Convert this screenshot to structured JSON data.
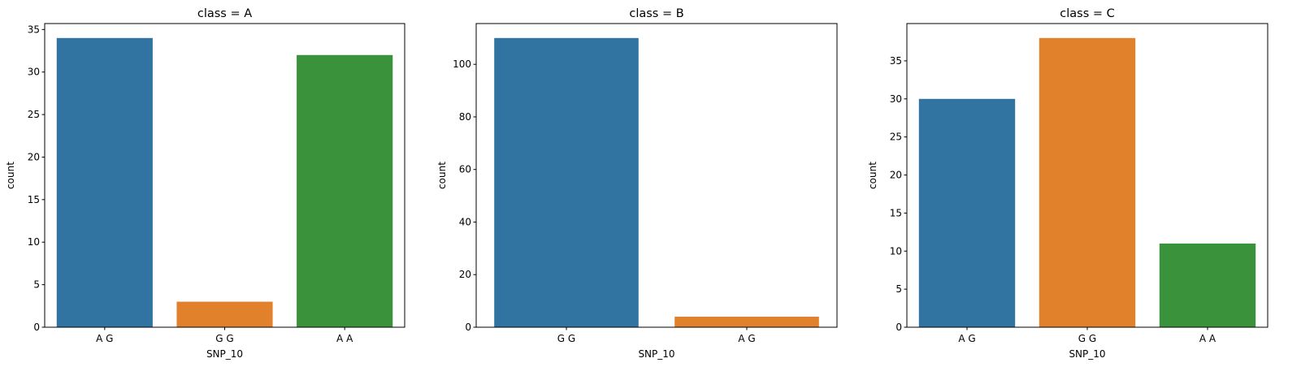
{
  "chart_data": [
    {
      "type": "bar",
      "title": "class = A",
      "xlabel": "SNP_10",
      "ylabel": "count",
      "categories": [
        "A G",
        "G G",
        "A A"
      ],
      "values": [
        34,
        3,
        32
      ],
      "colors": [
        "#3274a1",
        "#e1812c",
        "#3a923a"
      ],
      "ylim": [
        0,
        35.7
      ],
      "yticks": [
        0,
        5,
        10,
        15,
        20,
        25,
        30,
        35
      ],
      "grid": false
    },
    {
      "type": "bar",
      "title": "class = B",
      "xlabel": "SNP_10",
      "ylabel": "count",
      "categories": [
        "G G",
        "A G"
      ],
      "values": [
        110,
        4
      ],
      "colors": [
        "#3274a1",
        "#e1812c"
      ],
      "ylim": [
        0,
        115.5
      ],
      "yticks": [
        0,
        20,
        40,
        60,
        80,
        100
      ],
      "grid": false
    },
    {
      "type": "bar",
      "title": "class = C",
      "xlabel": "SNP_10",
      "ylabel": "count",
      "categories": [
        "A G",
        "G G",
        "A A"
      ],
      "values": [
        30,
        38,
        11
      ],
      "colors": [
        "#3274a1",
        "#e1812c",
        "#3a923a"
      ],
      "ylim": [
        0,
        39.9
      ],
      "yticks": [
        0,
        5,
        10,
        15,
        20,
        25,
        30,
        35
      ],
      "grid": false
    }
  ]
}
